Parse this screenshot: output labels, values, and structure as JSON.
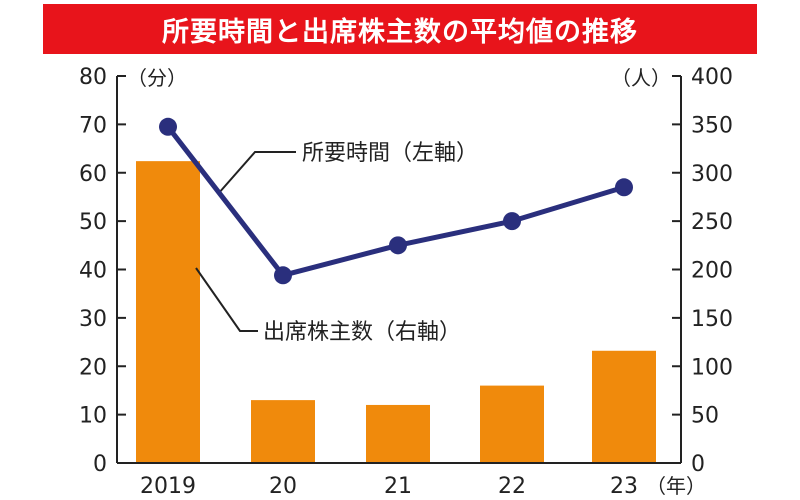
{
  "title": "所要時間と出席株主数の平均値の推移",
  "colors": {
    "title_bg": "#e8141b",
    "bar": "#f08a0c",
    "line": "#2a2f7d",
    "axis": "#222222"
  },
  "chart_data": {
    "type": "bar+line",
    "categories": [
      "2019",
      "20",
      "21",
      "22",
      "23"
    ],
    "x_unit_label": "（年）",
    "left_axis": {
      "unit_label": "（分）",
      "ylim": [
        0,
        80
      ],
      "ticks": [
        0,
        10,
        20,
        30,
        40,
        50,
        60,
        70,
        80
      ]
    },
    "right_axis": {
      "unit_label": "（人）",
      "ylim": [
        0,
        400
      ],
      "ticks": [
        0,
        50,
        100,
        150,
        200,
        250,
        300,
        350,
        400
      ]
    },
    "series": [
      {
        "name": "所要時間（左軸）",
        "kind": "line",
        "axis": "left",
        "values": [
          69.5,
          38.8,
          45,
          50,
          57
        ]
      },
      {
        "name": "出席株主数（右軸）",
        "kind": "bar",
        "axis": "right",
        "values": [
          312,
          65,
          60,
          80,
          116
        ]
      }
    ]
  }
}
